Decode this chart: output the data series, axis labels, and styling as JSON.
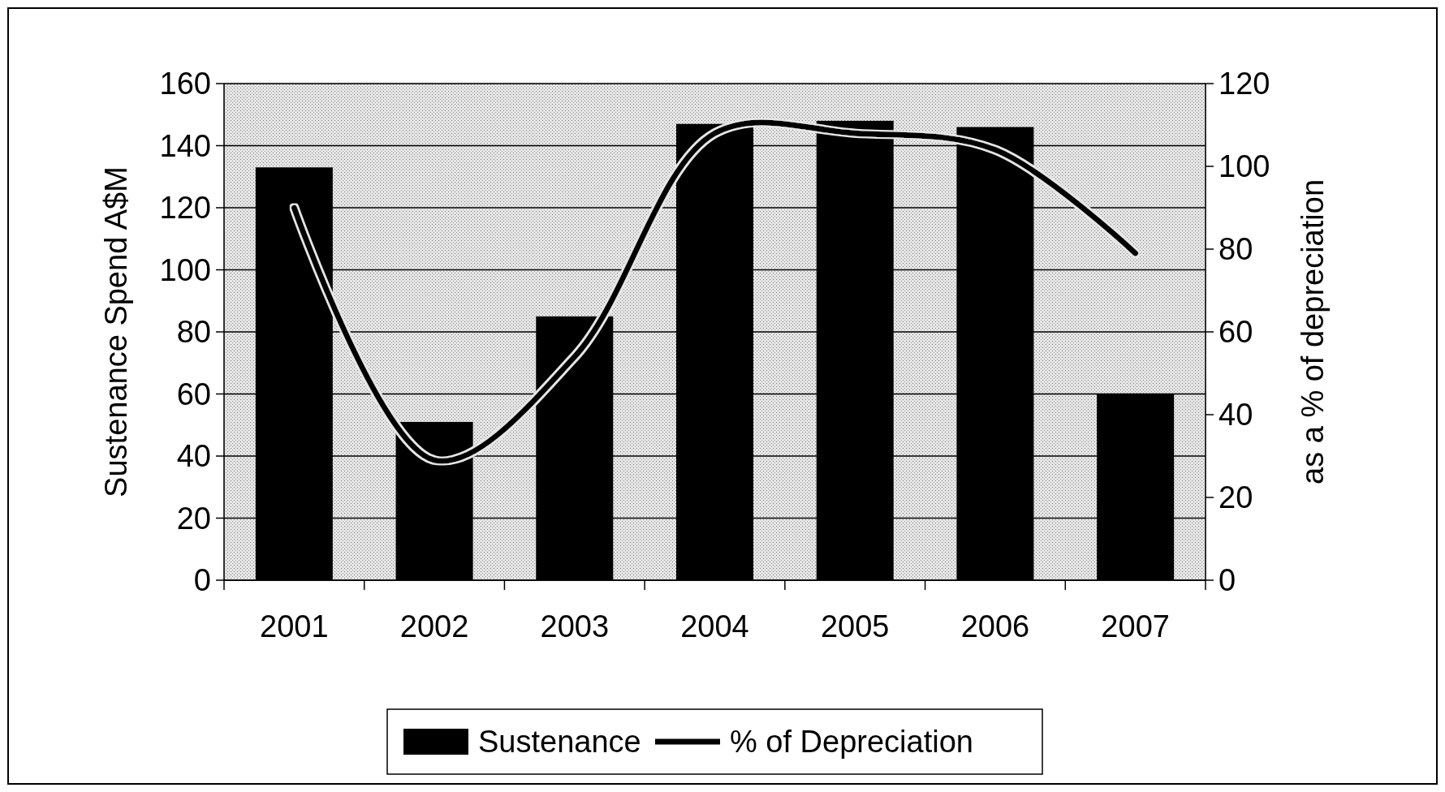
{
  "chart_data": {
    "type": "bar",
    "categories": [
      "2001",
      "2002",
      "2003",
      "2004",
      "2005",
      "2006",
      "2007"
    ],
    "series": [
      {
        "name": "Sustenance",
        "color": "#000000",
        "values": [
          133,
          51,
          85,
          147,
          148,
          146,
          60
        ]
      },
      {
        "name": "% of Depreciation",
        "type": "line",
        "axis": "y2",
        "color": "#000000",
        "values": [
          90,
          29,
          54,
          108,
          108,
          104,
          79
        ]
      }
    ],
    "ylabel": "Sustenance Spend A$M",
    "y2label": "as a % of depreciation",
    "ylim": [
      0,
      160
    ],
    "yticks": [
      0,
      20,
      40,
      60,
      80,
      100,
      120,
      140,
      160
    ],
    "y2lim": [
      0,
      120
    ],
    "y2ticks": [
      0,
      20,
      40,
      60,
      80,
      100,
      120
    ],
    "grid": "y",
    "legend": "bottom",
    "marker": "none",
    "line_style": "solid"
  }
}
